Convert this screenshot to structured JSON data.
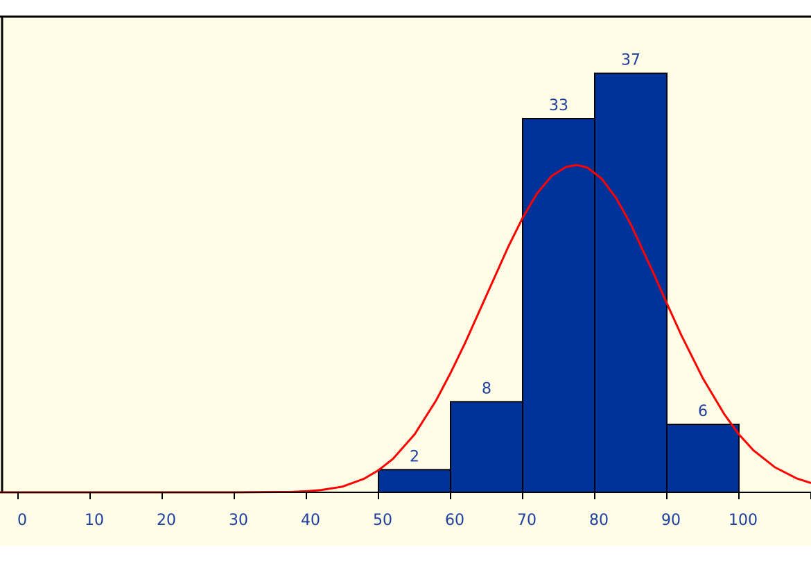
{
  "colors": {
    "background": "#fffde6",
    "bar_fill": "#003399",
    "bar_stroke": "#000000",
    "curve": "#ff0000",
    "text": "#1f3f9f",
    "axis": "#000000"
  },
  "chart_data": {
    "type": "bar",
    "title": "",
    "xlabel": "",
    "ylabel": "",
    "xlim": [
      -2.5,
      110
    ],
    "ylim": [
      0,
      42
    ],
    "x_ticks": [
      0,
      10,
      20,
      30,
      40,
      50,
      60,
      70,
      80,
      90,
      100
    ],
    "x_tick_labels": [
      "0",
      "10",
      "20",
      "30",
      "40",
      "50",
      "60",
      "70",
      "80",
      "90",
      "100"
    ],
    "grid": false,
    "series": [
      {
        "type": "histogram",
        "bins": [
          [
            50,
            60
          ],
          [
            60,
            70
          ],
          [
            70,
            80
          ],
          [
            80,
            90
          ],
          [
            90,
            100
          ]
        ],
        "values": [
          2,
          8,
          33,
          37,
          6
        ],
        "labels": [
          "2",
          "8",
          "33",
          "37",
          "6"
        ]
      },
      {
        "type": "line",
        "x": [
          -2.5,
          30,
          38,
          40,
          42,
          45,
          48,
          50,
          52,
          55,
          58,
          60,
          62,
          65,
          68,
          70,
          72,
          74,
          76,
          77.5,
          79,
          81,
          83,
          85,
          88,
          90,
          92,
          95,
          98,
          100,
          102,
          105,
          108,
          110
        ],
        "y": [
          0,
          0,
          0.04,
          0.1,
          0.2,
          0.5,
          1.2,
          1.95,
          2.95,
          5.11,
          8.12,
          10.54,
          13.16,
          17.42,
          21.67,
          24.24,
          26.39,
          27.92,
          28.73,
          28.9,
          28.67,
          27.67,
          25.95,
          23.67,
          19.55,
          16.69,
          13.89,
          10.07,
          6.87,
          5.12,
          3.72,
          2.21,
          1.23,
          0.82
        ]
      }
    ]
  }
}
